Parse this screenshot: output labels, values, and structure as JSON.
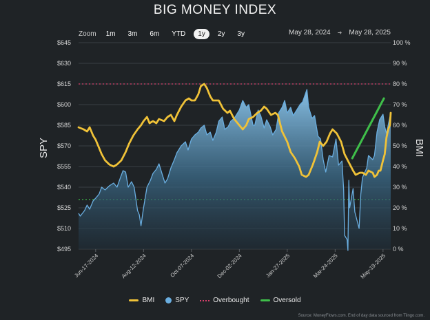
{
  "title": "BIG MONEY INDEX",
  "zoom": {
    "label": "Zoom",
    "buttons": [
      "1m",
      "3m",
      "6m",
      "YTD",
      "1y",
      "2y",
      "3y"
    ],
    "active": "1y"
  },
  "date_range": {
    "from": "May 28, 2024",
    "to": "May 28, 2025"
  },
  "source": "Source: MoneyFlows.com. End of day data sourced from Tiingo.com.",
  "colors": {
    "bmi": "#f0c238",
    "spy": "#6aaee0",
    "overbought": "#d9406c",
    "oversold": "#3fbf4a",
    "background": "#1f2326"
  },
  "chart_data": {
    "type": "line",
    "title": "BIG MONEY INDEX",
    "ylabel": "SPY",
    "y2label": "BMI",
    "ylim": [
      495,
      645
    ],
    "y2lim": [
      0,
      100
    ],
    "yticks": [
      "$645",
      "$630",
      "$615",
      "$600",
      "$585",
      "$570",
      "$555",
      "$540",
      "$525",
      "$510",
      "$495"
    ],
    "y2ticks": [
      "100 %",
      "90 %",
      "80 %",
      "70 %",
      "60 %",
      "50 %",
      "40 %",
      "30 %",
      "20 %",
      "10 %",
      "0 %"
    ],
    "xticks": [
      {
        "label": "Jun-17-2024",
        "x": "2024-06-17"
      },
      {
        "label": "Aug-12-2024",
        "x": "2024-08-12"
      },
      {
        "label": "Oct-07-2024",
        "x": "2024-10-07"
      },
      {
        "label": "Dec-02-2024",
        "x": "2024-12-02"
      },
      {
        "label": "Jan-27-2025",
        "x": "2025-01-27"
      },
      {
        "label": "Mar-24-2025",
        "x": "2025-03-24"
      },
      {
        "label": "May-19-2025",
        "x": "2025-05-19"
      }
    ],
    "xlim": [
      "2024-05-28",
      "2025-05-28"
    ],
    "legend": [
      "BMI",
      "SPY",
      "Overbought",
      "Oversold"
    ],
    "legend_position": "bottom",
    "overbought_level": 80,
    "oversold_level": 24,
    "series": [
      {
        "name": "BMI",
        "axis": "right",
        "points": [
          [
            "2024-05-28",
            59
          ],
          [
            "2024-06-03",
            58
          ],
          [
            "2024-06-07",
            57
          ],
          [
            "2024-06-10",
            59
          ],
          [
            "2024-06-14",
            55
          ],
          [
            "2024-06-17",
            53
          ],
          [
            "2024-06-21",
            49
          ],
          [
            "2024-06-24",
            46
          ],
          [
            "2024-06-28",
            43
          ],
          [
            "2024-07-03",
            41
          ],
          [
            "2024-07-08",
            40
          ],
          [
            "2024-07-12",
            41
          ],
          [
            "2024-07-17",
            43
          ],
          [
            "2024-07-22",
            47
          ],
          [
            "2024-07-26",
            51
          ],
          [
            "2024-07-31",
            55
          ],
          [
            "2024-08-05",
            58
          ],
          [
            "2024-08-09",
            60
          ],
          [
            "2024-08-12",
            62
          ],
          [
            "2024-08-16",
            64
          ],
          [
            "2024-08-19",
            61
          ],
          [
            "2024-08-23",
            62
          ],
          [
            "2024-08-27",
            61
          ],
          [
            "2024-08-30",
            63
          ],
          [
            "2024-09-05",
            62
          ],
          [
            "2024-09-09",
            64
          ],
          [
            "2024-09-13",
            65
          ],
          [
            "2024-09-17",
            62
          ],
          [
            "2024-09-20",
            65
          ],
          [
            "2024-09-25",
            69
          ],
          [
            "2024-09-30",
            72
          ],
          [
            "2024-10-04",
            73
          ],
          [
            "2024-10-07",
            72
          ],
          [
            "2024-10-11",
            72
          ],
          [
            "2024-10-15",
            75
          ],
          [
            "2024-10-18",
            79
          ],
          [
            "2024-10-22",
            80
          ],
          [
            "2024-10-25",
            78
          ],
          [
            "2024-10-29",
            74
          ],
          [
            "2024-11-01",
            72
          ],
          [
            "2024-11-05",
            72
          ],
          [
            "2024-11-08",
            72
          ],
          [
            "2024-11-13",
            68
          ],
          [
            "2024-11-18",
            66
          ],
          [
            "2024-11-21",
            67
          ],
          [
            "2024-11-26",
            63
          ],
          [
            "2024-12-02",
            60
          ],
          [
            "2024-12-06",
            58
          ],
          [
            "2024-12-10",
            60
          ],
          [
            "2024-12-13",
            63
          ],
          [
            "2024-12-18",
            64
          ],
          [
            "2024-12-23",
            66
          ],
          [
            "2024-12-27",
            67
          ],
          [
            "2024-12-31",
            69
          ],
          [
            "2025-01-03",
            68
          ],
          [
            "2025-01-08",
            65
          ],
          [
            "2025-01-13",
            66
          ],
          [
            "2025-01-16",
            65
          ],
          [
            "2025-01-21",
            57
          ],
          [
            "2025-01-27",
            52
          ],
          [
            "2025-01-31",
            47
          ],
          [
            "2025-02-05",
            44
          ],
          [
            "2025-02-10",
            40
          ],
          [
            "2025-02-13",
            36
          ],
          [
            "2025-02-18",
            35
          ],
          [
            "2025-02-21",
            36
          ],
          [
            "2025-02-26",
            41
          ],
          [
            "2025-03-03",
            47
          ],
          [
            "2025-03-06",
            52
          ],
          [
            "2025-03-10",
            50
          ],
          [
            "2025-03-14",
            52
          ],
          [
            "2025-03-18",
            56
          ],
          [
            "2025-03-21",
            58
          ],
          [
            "2025-03-26",
            56
          ],
          [
            "2025-03-31",
            52
          ],
          [
            "2025-04-04",
            46
          ],
          [
            "2025-04-09",
            42
          ],
          [
            "2025-04-14",
            38
          ],
          [
            "2025-04-17",
            36
          ],
          [
            "2025-04-22",
            37
          ],
          [
            "2025-04-25",
            37
          ],
          [
            "2025-04-29",
            36
          ],
          [
            "2025-05-02",
            38
          ],
          [
            "2025-05-07",
            37
          ],
          [
            "2025-05-09",
            35
          ],
          [
            "2025-05-12",
            36
          ],
          [
            "2025-05-14",
            38
          ],
          [
            "2025-05-16",
            38
          ],
          [
            "2025-05-19",
            43
          ],
          [
            "2025-05-21",
            46
          ],
          [
            "2025-05-23",
            54
          ],
          [
            "2025-05-25",
            58
          ],
          [
            "2025-05-27",
            60
          ],
          [
            "2025-05-28",
            66
          ]
        ]
      },
      {
        "name": "SPY",
        "axis": "left",
        "points": [
          [
            "2024-05-28",
            521
          ],
          [
            "2024-05-30",
            519
          ],
          [
            "2024-06-04",
            523
          ],
          [
            "2024-06-07",
            527
          ],
          [
            "2024-06-10",
            524
          ],
          [
            "2024-06-14",
            530
          ],
          [
            "2024-06-17",
            532
          ],
          [
            "2024-06-21",
            535
          ],
          [
            "2024-06-24",
            540
          ],
          [
            "2024-06-28",
            538
          ],
          [
            "2024-07-03",
            541
          ],
          [
            "2024-07-08",
            543
          ],
          [
            "2024-07-12",
            540
          ],
          [
            "2024-07-16",
            547
          ],
          [
            "2024-07-19",
            552
          ],
          [
            "2024-07-22",
            551
          ],
          [
            "2024-07-25",
            540
          ],
          [
            "2024-07-29",
            544
          ],
          [
            "2024-08-01",
            540
          ],
          [
            "2024-08-05",
            523
          ],
          [
            "2024-08-07",
            520
          ],
          [
            "2024-08-09",
            512
          ],
          [
            "2024-08-12",
            525
          ],
          [
            "2024-08-16",
            540
          ],
          [
            "2024-08-20",
            545
          ],
          [
            "2024-08-23",
            550
          ],
          [
            "2024-08-27",
            553
          ],
          [
            "2024-08-30",
            557
          ],
          [
            "2024-09-03",
            549
          ],
          [
            "2024-09-06",
            543
          ],
          [
            "2024-09-09",
            546
          ],
          [
            "2024-09-13",
            554
          ],
          [
            "2024-09-17",
            560
          ],
          [
            "2024-09-20",
            565
          ],
          [
            "2024-09-25",
            570
          ],
          [
            "2024-09-30",
            573
          ],
          [
            "2024-10-03",
            567
          ],
          [
            "2024-10-07",
            575
          ],
          [
            "2024-10-11",
            578
          ],
          [
            "2024-10-15",
            580
          ],
          [
            "2024-10-18",
            583
          ],
          [
            "2024-10-22",
            585
          ],
          [
            "2024-10-25",
            578
          ],
          [
            "2024-10-29",
            580
          ],
          [
            "2024-11-01",
            574
          ],
          [
            "2024-11-05",
            580
          ],
          [
            "2024-11-08",
            588
          ],
          [
            "2024-11-12",
            591
          ],
          [
            "2024-11-15",
            582
          ],
          [
            "2024-11-19",
            584
          ],
          [
            "2024-11-22",
            588
          ],
          [
            "2024-11-26",
            590
          ],
          [
            "2024-12-02",
            596
          ],
          [
            "2024-12-06",
            603
          ],
          [
            "2024-12-10",
            598
          ],
          [
            "2024-12-13",
            600
          ],
          [
            "2024-12-18",
            585
          ],
          [
            "2024-12-20",
            585
          ],
          [
            "2024-12-24",
            596
          ],
          [
            "2024-12-27",
            592
          ],
          [
            "2024-12-31",
            583
          ],
          [
            "2025-01-03",
            589
          ],
          [
            "2025-01-07",
            584
          ],
          [
            "2025-01-10",
            578
          ],
          [
            "2025-01-14",
            582
          ],
          [
            "2025-01-17",
            594
          ],
          [
            "2025-01-21",
            598
          ],
          [
            "2025-01-24",
            603
          ],
          [
            "2025-01-27",
            594
          ],
          [
            "2025-01-31",
            598
          ],
          [
            "2025-02-03",
            592
          ],
          [
            "2025-02-07",
            596
          ],
          [
            "2025-02-11",
            600
          ],
          [
            "2025-02-14",
            602
          ],
          [
            "2025-02-19",
            611
          ],
          [
            "2025-02-21",
            598
          ],
          [
            "2025-02-25",
            590
          ],
          [
            "2025-02-28",
            592
          ],
          [
            "2025-03-04",
            577
          ],
          [
            "2025-03-07",
            575
          ],
          [
            "2025-03-10",
            560
          ],
          [
            "2025-03-13",
            551
          ],
          [
            "2025-03-17",
            563
          ],
          [
            "2025-03-21",
            562
          ],
          [
            "2025-03-25",
            575
          ],
          [
            "2025-03-28",
            556
          ],
          [
            "2025-04-01",
            559
          ],
          [
            "2025-04-03",
            538
          ],
          [
            "2025-04-04",
            505
          ],
          [
            "2025-04-07",
            502
          ],
          [
            "2025-04-08",
            494
          ],
          [
            "2025-04-09",
            545
          ],
          [
            "2025-04-10",
            525
          ],
          [
            "2025-04-14",
            539
          ],
          [
            "2025-04-16",
            522
          ],
          [
            "2025-04-21",
            510
          ],
          [
            "2025-04-23",
            535
          ],
          [
            "2025-04-25",
            547
          ],
          [
            "2025-04-30",
            554
          ],
          [
            "2025-05-02",
            563
          ],
          [
            "2025-05-07",
            560
          ],
          [
            "2025-05-09",
            563
          ],
          [
            "2025-05-12",
            580
          ],
          [
            "2025-05-15",
            589
          ],
          [
            "2025-05-19",
            593
          ],
          [
            "2025-05-21",
            584
          ],
          [
            "2025-05-23",
            579
          ],
          [
            "2025-05-27",
            591
          ],
          [
            "2025-05-28",
            587
          ]
        ]
      },
      {
        "name": "Oversold",
        "axis": "right",
        "points": [
          [
            "2025-04-13",
            44
          ],
          [
            "2025-05-20",
            73
          ]
        ]
      }
    ]
  }
}
